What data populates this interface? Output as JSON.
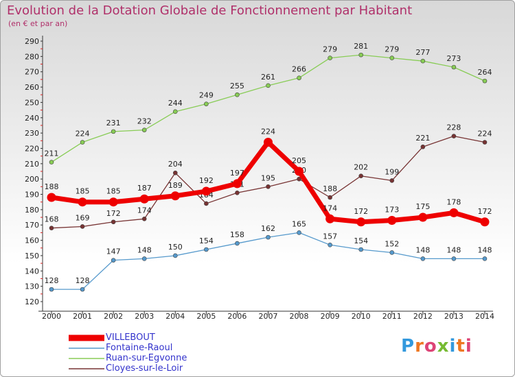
{
  "chart_data": {
    "type": "line",
    "title": "Evolution de la Dotation Globale de Fonctionnement par Habitant",
    "subtitle": "(en € et par an)",
    "x": [
      "2000",
      "2001",
      "2002",
      "2003",
      "2004",
      "2005",
      "2006",
      "2007",
      "2008",
      "2009",
      "2010",
      "2011",
      "2012",
      "2013",
      "2014"
    ],
    "ylim": [
      120,
      290
    ],
    "yticks": [
      120,
      130,
      140,
      150,
      160,
      170,
      180,
      190,
      200,
      210,
      220,
      230,
      240,
      250,
      260,
      270,
      280,
      290
    ],
    "grid": false,
    "legend_position": "bottom-left",
    "series": [
      {
        "name": "VILLEBOUT",
        "color": "#ee0000",
        "values": [
          188,
          185,
          185,
          187,
          189,
          192,
          197,
          224,
          205,
          174,
          172,
          173,
          175,
          178,
          172
        ]
      },
      {
        "name": "Fontaine-Raoul",
        "color": "#5599cc",
        "values": [
          128,
          128,
          147,
          148,
          150,
          154,
          158,
          162,
          165,
          157,
          154,
          152,
          148,
          148,
          148
        ]
      },
      {
        "name": "Ruan-sur-Egvonne",
        "color": "#88cc55",
        "values": [
          211,
          224,
          231,
          232,
          244,
          249,
          255,
          261,
          266,
          279,
          281,
          279,
          277,
          273,
          264
        ]
      },
      {
        "name": "Cloyes-sur-le-Loir",
        "color": "#773333",
        "values": [
          168,
          169,
          172,
          174,
          204,
          184,
          191,
          195,
          200,
          188,
          202,
          199,
          221,
          228,
          224
        ]
      }
    ]
  },
  "logo": {
    "text": "Proxiti"
  }
}
